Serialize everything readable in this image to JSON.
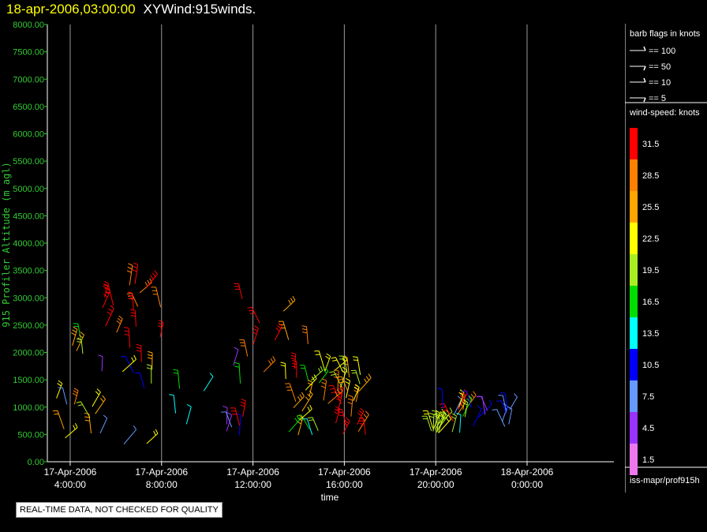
{
  "header": {
    "timestamp": "18-apr-2006,03:00:00",
    "title": "XYWind:915winds."
  },
  "notice": "REAL-TIME DATA, NOT CHECKED FOR QUALITY",
  "legend": {
    "barb_title": "barb flags in knots",
    "barbs": [
      {
        "label": "== 100",
        "icon": "barb-100"
      },
      {
        "label": "== 50",
        "icon": "barb-50"
      },
      {
        "label": "== 10",
        "icon": "barb-10"
      },
      {
        "label": "== 5",
        "icon": "barb-5"
      }
    ],
    "speed_title": "wind-speed: knots",
    "speed_scale": [
      {
        "label": "31.5",
        "color": "#ff0000"
      },
      {
        "label": "28.5",
        "color": "#ff8000"
      },
      {
        "label": "25.5",
        "color": "#ffa500"
      },
      {
        "label": "22.5",
        "color": "#ffff00"
      },
      {
        "label": "19.5",
        "color": "#aaee22"
      },
      {
        "label": "16.5",
        "color": "#00dd00"
      },
      {
        "label": "13.5",
        "color": "#00ffff"
      },
      {
        "label": "10.5",
        "color": "#0000ff"
      },
      {
        "label": "7.5",
        "color": "#6699ff"
      },
      {
        "label": "4.5",
        "color": "#9933ff"
      },
      {
        "label": "1.5",
        "color": "#ee77ee"
      }
    ],
    "source": "iss-mapr/prof915h"
  },
  "chart_data": {
    "type": "scatter",
    "xlabel": "time",
    "ylabel": "915 Profiler Altitude (m agl)",
    "x_range_hours": [
      3.0,
      27.8
    ],
    "ylim": [
      0,
      8000
    ],
    "y_ticks": [
      0,
      500,
      1000,
      1500,
      2000,
      2500,
      3000,
      3500,
      4000,
      4500,
      5000,
      5500,
      6000,
      6500,
      7000,
      7500,
      8000
    ],
    "y_tick_labels": [
      "0.00",
      "500.00",
      "1000.00",
      "1500.00",
      "2000.00",
      "2500.00",
      "3000.00",
      "3500.00",
      "4000.00",
      "4500.00",
      "5000.00",
      "5500.00",
      "6000.00",
      "6500.00",
      "7000.00",
      "7500.00",
      "8000.00"
    ],
    "x_ticks": [
      {
        "hour": 4,
        "date": "17-Apr-2006",
        "time": "4:00:00"
      },
      {
        "hour": 8,
        "date": "17-Apr-2006",
        "time": "8:00:00"
      },
      {
        "hour": 12,
        "date": "17-Apr-2006",
        "time": "12:00:00"
      },
      {
        "hour": 16,
        "date": "17-Apr-2006",
        "time": "16:00:00"
      },
      {
        "hour": 20,
        "date": "17-Apr-2006",
        "time": "20:00:00"
      },
      {
        "hour": 24,
        "date": "18-Apr-2006",
        "time": "0:00:00"
      }
    ],
    "grid": "vertical",
    "series_note": "wind barbs colored by speed",
    "data_clusters": [
      {
        "h_start": 3.1,
        "h_end": 5.8,
        "alt_low": 150,
        "alt_high": 2300,
        "speed_low": 3,
        "speed_high": 30
      },
      {
        "h_start": 4.5,
        "h_end": 8.8,
        "alt_low": 1800,
        "alt_high": 3300,
        "speed_low": 28,
        "speed_high": 33
      },
      {
        "h_start": 5.8,
        "h_end": 11.5,
        "alt_low": 100,
        "alt_high": 1800,
        "speed_low": 5,
        "speed_high": 27
      },
      {
        "h_start": 11.4,
        "h_end": 14.5,
        "alt_low": 400,
        "alt_high": 3000,
        "speed_low": 25,
        "speed_high": 33
      },
      {
        "h_start": 13.0,
        "h_end": 15.2,
        "alt_low": 400,
        "alt_high": 2000,
        "speed_low": 14,
        "speed_high": 26
      },
      {
        "h_start": 15.0,
        "h_end": 17.0,
        "alt_low": 400,
        "alt_high": 1200,
        "speed_low": 28,
        "speed_high": 33
      },
      {
        "h_start": 15.5,
        "h_end": 17.0,
        "alt_low": 1100,
        "alt_high": 1700,
        "speed_low": 20,
        "speed_high": 28
      },
      {
        "h_start": 19.8,
        "h_end": 20.2,
        "alt_low": 500,
        "alt_high": 700,
        "speed_low": 18,
        "speed_high": 22
      },
      {
        "h_start": 20.3,
        "h_end": 21.3,
        "alt_low": 500,
        "alt_high": 1000,
        "speed_low": 6,
        "speed_high": 33
      },
      {
        "h_start": 21.5,
        "h_end": 23.3,
        "alt_low": 600,
        "alt_high": 1000,
        "speed_low": 3,
        "speed_high": 12
      }
    ]
  }
}
